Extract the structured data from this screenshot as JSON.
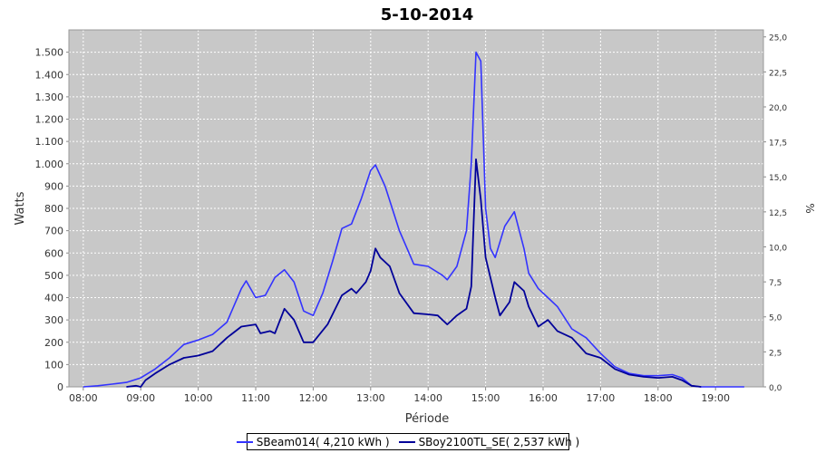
{
  "chart_data": {
    "type": "line",
    "title": "5-10-2014",
    "xlabel": "Période",
    "ylabel": "Watts",
    "y2label": "%",
    "x_ticks": [
      "08:00",
      "09:00",
      "10:00",
      "11:00",
      "12:00",
      "13:00",
      "14:00",
      "15:00",
      "16:00",
      "17:00",
      "18:00",
      "19:00"
    ],
    "xlim": [
      "07:45",
      "19:50"
    ],
    "ylim": [
      0,
      1600
    ],
    "y_ticks": [
      0,
      100,
      200,
      300,
      400,
      500,
      600,
      700,
      800,
      900,
      1000,
      1100,
      1200,
      1300,
      1400,
      1500
    ],
    "y_tick_labels": [
      "0",
      "100",
      "200",
      "300",
      "400",
      "500",
      "600",
      "700",
      "800",
      "900",
      "1.000",
      "1.100",
      "1.200",
      "1.300",
      "1.400",
      "1.500"
    ],
    "y2lim": [
      0,
      25.5
    ],
    "y2_ticks": [
      0,
      2.5,
      5,
      7.5,
      10,
      12.5,
      15,
      17.5,
      20,
      22.5,
      25
    ],
    "y2_tick_labels": [
      "0,0",
      "2,5",
      "5,0",
      "7,5",
      "10,0",
      "12,5",
      "15,0",
      "17,5",
      "20,0",
      "22,5",
      "25,0"
    ],
    "grid": true,
    "legend_position": "bottom",
    "series": [
      {
        "name": "SBeam014( 4,210 kWh )",
        "color": "#3333ff",
        "points": [
          [
            "08:00",
            0
          ],
          [
            "08:15",
            5
          ],
          [
            "08:30",
            12
          ],
          [
            "08:45",
            20
          ],
          [
            "09:00",
            40
          ],
          [
            "09:15",
            80
          ],
          [
            "09:30",
            130
          ],
          [
            "09:45",
            190
          ],
          [
            "10:00",
            210
          ],
          [
            "10:15",
            235
          ],
          [
            "10:30",
            290
          ],
          [
            "10:45",
            440
          ],
          [
            "10:50",
            475
          ],
          [
            "11:00",
            400
          ],
          [
            "11:10",
            410
          ],
          [
            "11:20",
            490
          ],
          [
            "11:30",
            525
          ],
          [
            "11:40",
            470
          ],
          [
            "11:50",
            340
          ],
          [
            "12:00",
            320
          ],
          [
            "12:10",
            420
          ],
          [
            "12:20",
            560
          ],
          [
            "12:30",
            710
          ],
          [
            "12:40",
            730
          ],
          [
            "12:50",
            840
          ],
          [
            "13:00",
            970
          ],
          [
            "13:05",
            995
          ],
          [
            "13:15",
            900
          ],
          [
            "13:30",
            700
          ],
          [
            "13:45",
            550
          ],
          [
            "14:00",
            540
          ],
          [
            "14:15",
            500
          ],
          [
            "14:20",
            480
          ],
          [
            "14:30",
            540
          ],
          [
            "14:40",
            700
          ],
          [
            "14:45",
            1000
          ],
          [
            "14:50",
            1500
          ],
          [
            "14:55",
            1460
          ],
          [
            "15:00",
            800
          ],
          [
            "15:05",
            620
          ],
          [
            "15:10",
            580
          ],
          [
            "15:20",
            720
          ],
          [
            "15:30",
            785
          ],
          [
            "15:40",
            620
          ],
          [
            "15:45",
            510
          ],
          [
            "15:55",
            440
          ],
          [
            "16:05",
            400
          ],
          [
            "16:15",
            360
          ],
          [
            "16:30",
            260
          ],
          [
            "16:45",
            220
          ],
          [
            "17:00",
            150
          ],
          [
            "17:15",
            90
          ],
          [
            "17:30",
            60
          ],
          [
            "17:45",
            50
          ],
          [
            "18:00",
            50
          ],
          [
            "18:15",
            55
          ],
          [
            "18:25",
            40
          ],
          [
            "18:35",
            5
          ],
          [
            "18:45",
            0
          ],
          [
            "19:30",
            0
          ]
        ]
      },
      {
        "name": "SBoy2100TL_SE( 2,537 kWh )",
        "color": "#000099",
        "points": [
          [
            "08:45",
            0
          ],
          [
            "08:55",
            5
          ],
          [
            "09:00",
            0
          ],
          [
            "09:05",
            30
          ],
          [
            "09:15",
            60
          ],
          [
            "09:30",
            100
          ],
          [
            "09:45",
            130
          ],
          [
            "10:00",
            140
          ],
          [
            "10:15",
            160
          ],
          [
            "10:30",
            220
          ],
          [
            "10:45",
            270
          ],
          [
            "11:00",
            280
          ],
          [
            "11:05",
            240
          ],
          [
            "11:15",
            250
          ],
          [
            "11:20",
            240
          ],
          [
            "11:30",
            350
          ],
          [
            "11:40",
            300
          ],
          [
            "11:50",
            200
          ],
          [
            "12:00",
            200
          ],
          [
            "12:15",
            280
          ],
          [
            "12:30",
            410
          ],
          [
            "12:40",
            440
          ],
          [
            "12:45",
            420
          ],
          [
            "12:55",
            470
          ],
          [
            "13:00",
            520
          ],
          [
            "13:05",
            620
          ],
          [
            "13:10",
            580
          ],
          [
            "13:20",
            540
          ],
          [
            "13:30",
            420
          ],
          [
            "13:45",
            330
          ],
          [
            "14:00",
            325
          ],
          [
            "14:10",
            320
          ],
          [
            "14:20",
            280
          ],
          [
            "14:30",
            320
          ],
          [
            "14:40",
            350
          ],
          [
            "14:45",
            450
          ],
          [
            "14:50",
            1020
          ],
          [
            "14:55",
            840
          ],
          [
            "15:00",
            580
          ],
          [
            "15:10",
            400
          ],
          [
            "15:15",
            320
          ],
          [
            "15:25",
            380
          ],
          [
            "15:30",
            470
          ],
          [
            "15:40",
            430
          ],
          [
            "15:45",
            360
          ],
          [
            "15:55",
            270
          ],
          [
            "16:05",
            300
          ],
          [
            "16:15",
            250
          ],
          [
            "16:30",
            220
          ],
          [
            "16:45",
            150
          ],
          [
            "17:00",
            130
          ],
          [
            "17:15",
            80
          ],
          [
            "17:30",
            55
          ],
          [
            "17:45",
            45
          ],
          [
            "18:00",
            40
          ],
          [
            "18:15",
            45
          ],
          [
            "18:25",
            30
          ],
          [
            "18:35",
            5
          ],
          [
            "18:45",
            0
          ]
        ]
      }
    ]
  }
}
